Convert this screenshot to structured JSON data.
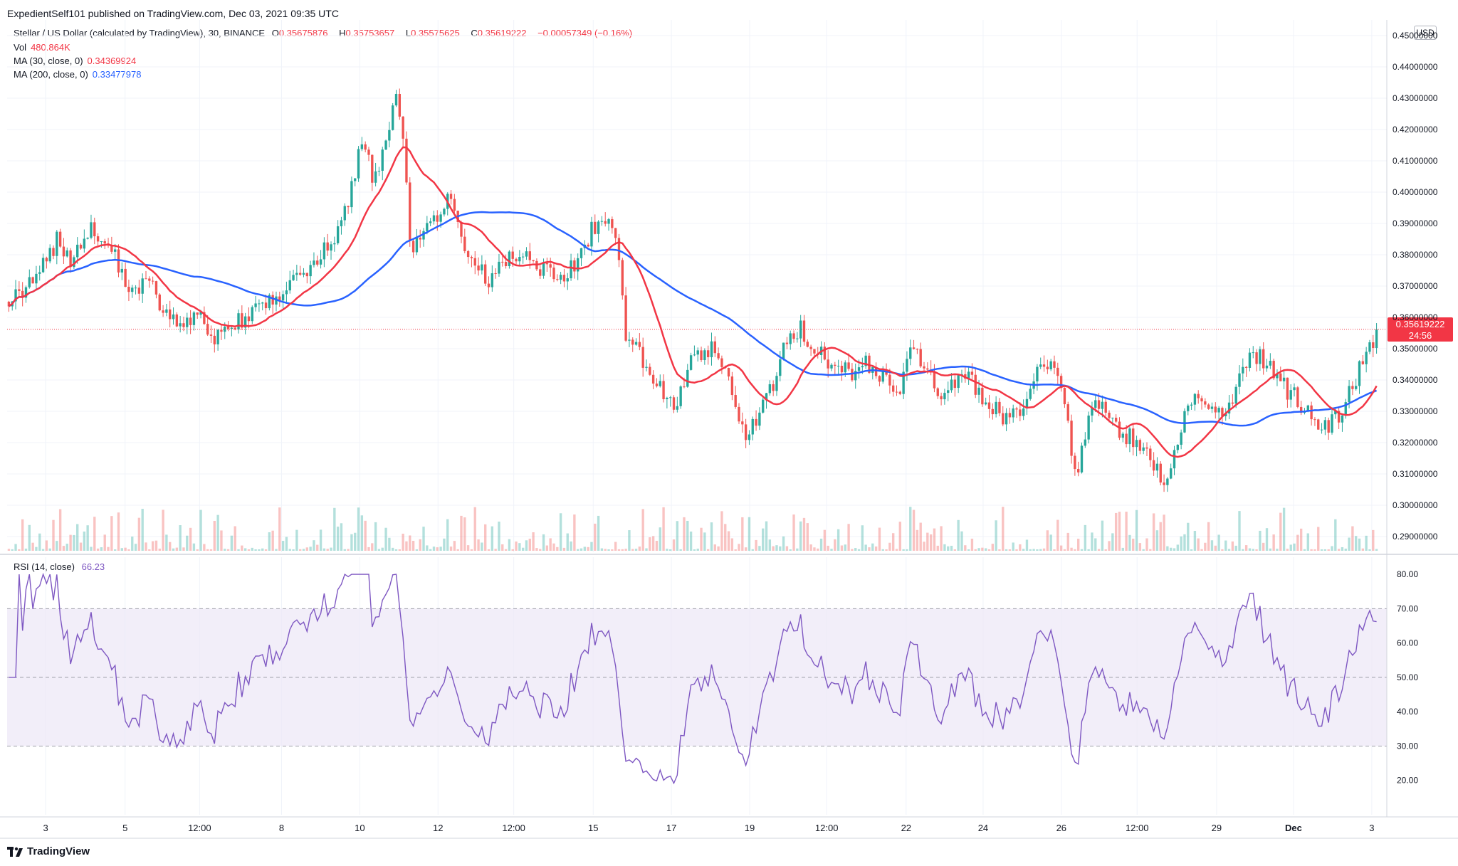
{
  "header": {
    "text": "ExpedientSelf101 published on TradingView.com, Dec 03, 2021 09:35 UTC"
  },
  "legend": {
    "symbol": "Stellar / US Dollar (calculated by TradingView), 30, BINANCE",
    "ohlc": {
      "o_label": "O",
      "o_value": "0.35675876",
      "h_label": "H",
      "h_value": "0.35753657",
      "l_label": "L",
      "l_value": "0.35575625",
      "c_label": "C",
      "c_value": "0.35619222",
      "change": "−0.00057349 (−0.16%)"
    },
    "vol_label": "Vol",
    "vol_value": "480.864K",
    "ma30_label": "MA (30, close, 0)",
    "ma30_value": "0.34369924",
    "ma200_label": "MA (200, close, 0)",
    "ma200_value": "0.33477978"
  },
  "currency": "USD",
  "price_badge": {
    "price": "0.35619222",
    "countdown": "24:56"
  },
  "rsi_legend": {
    "label": "RSI (14, close)",
    "value": "66.23"
  },
  "footer": {
    "brand": "TradingView"
  },
  "colors": {
    "up": "#26a69a",
    "down": "#ef5350",
    "ma30": "#f23645",
    "ma200": "#2962ff",
    "rsi": "#7e57c2",
    "rsi_band": "#ede7f6",
    "grid": "#f0f3fa"
  },
  "chart_data": [
    {
      "type": "candlestick",
      "title": "",
      "ylim": [
        0.285,
        0.455
      ],
      "y_ticks": [
        "0.45000000",
        "0.44000000",
        "0.43000000",
        "0.42000000",
        "0.41000000",
        "0.40000000",
        "0.39000000",
        "0.38000000",
        "0.37000000",
        "0.36000000",
        "0.35000000",
        "0.34000000",
        "0.33000000",
        "0.32000000",
        "0.31000000",
        "0.30000000",
        "0.29000000"
      ],
      "y_tick_values": [
        0.45,
        0.44,
        0.43,
        0.42,
        0.41,
        0.4,
        0.39,
        0.38,
        0.37,
        0.36,
        0.35,
        0.34,
        0.33,
        0.32,
        0.31,
        0.3,
        0.29
      ],
      "x_tick_labels": [
        "3",
        "5",
        "12:00",
        "8",
        "10",
        "12",
        "12:00",
        "15",
        "17",
        "19",
        "12:00",
        "22",
        "24",
        "26",
        "12:00",
        "29",
        "Dec",
        "3"
      ],
      "x_tick_positions": [
        0.031,
        0.095,
        0.155,
        0.221,
        0.284,
        0.347,
        0.408,
        0.472,
        0.535,
        0.598,
        0.66,
        0.724,
        0.786,
        0.849,
        0.91,
        0.974,
        1.036,
        1.099
      ],
      "last_price": 0.35619222,
      "path_points": [
        [
          0.0,
          0.365
        ],
        [
          0.02,
          0.372
        ],
        [
          0.035,
          0.385
        ],
        [
          0.045,
          0.378
        ],
        [
          0.06,
          0.388
        ],
        [
          0.075,
          0.381
        ],
        [
          0.085,
          0.368
        ],
        [
          0.1,
          0.372
        ],
        [
          0.112,
          0.362
        ],
        [
          0.125,
          0.358
        ],
        [
          0.138,
          0.36
        ],
        [
          0.145,
          0.352
        ],
        [
          0.16,
          0.357
        ],
        [
          0.175,
          0.361
        ],
        [
          0.19,
          0.366
        ],
        [
          0.205,
          0.372
        ],
        [
          0.22,
          0.378
        ],
        [
          0.232,
          0.383
        ],
        [
          0.245,
          0.398
        ],
        [
          0.255,
          0.418
        ],
        [
          0.262,
          0.405
        ],
        [
          0.27,
          0.412
        ],
        [
          0.278,
          0.432
        ],
        [
          0.283,
          0.42
        ],
        [
          0.29,
          0.38
        ],
        [
          0.3,
          0.388
        ],
        [
          0.31,
          0.392
        ],
        [
          0.318,
          0.398
        ],
        [
          0.325,
          0.385
        ],
        [
          0.335,
          0.378
        ],
        [
          0.345,
          0.372
        ],
        [
          0.36,
          0.378
        ],
        [
          0.372,
          0.38
        ],
        [
          0.385,
          0.375
        ],
        [
          0.398,
          0.372
        ],
        [
          0.41,
          0.378
        ],
        [
          0.42,
          0.388
        ],
        [
          0.43,
          0.391
        ],
        [
          0.438,
          0.383
        ],
        [
          0.445,
          0.352
        ],
        [
          0.455,
          0.348
        ],
        [
          0.468,
          0.338
        ],
        [
          0.48,
          0.333
        ],
        [
          0.492,
          0.347
        ],
        [
          0.505,
          0.35
        ],
        [
          0.515,
          0.345
        ],
        [
          0.525,
          0.33
        ],
        [
          0.532,
          0.322
        ],
        [
          0.54,
          0.33
        ],
        [
          0.55,
          0.338
        ],
        [
          0.56,
          0.353
        ],
        [
          0.57,
          0.357
        ],
        [
          0.58,
          0.35
        ],
        [
          0.592,
          0.345
        ],
        [
          0.605,
          0.342
        ],
        [
          0.618,
          0.345
        ],
        [
          0.63,
          0.34
        ],
        [
          0.64,
          0.334
        ],
        [
          0.65,
          0.352
        ],
        [
          0.66,
          0.345
        ],
        [
          0.67,
          0.335
        ],
        [
          0.68,
          0.339
        ],
        [
          0.692,
          0.34
        ],
        [
          0.705,
          0.333
        ],
        [
          0.718,
          0.328
        ],
        [
          0.73,
          0.332
        ],
        [
          0.742,
          0.345
        ],
        [
          0.752,
          0.343
        ],
        [
          0.76,
          0.336
        ],
        [
          0.768,
          0.308
        ],
        [
          0.776,
          0.325
        ],
        [
          0.785,
          0.333
        ],
        [
          0.795,
          0.325
        ],
        [
          0.805,
          0.322
        ],
        [
          0.815,
          0.32
        ],
        [
          0.825,
          0.312
        ],
        [
          0.833,
          0.306
        ],
        [
          0.84,
          0.318
        ],
        [
          0.85,
          0.332
        ],
        [
          0.86,
          0.334
        ],
        [
          0.87,
          0.328
        ],
        [
          0.88,
          0.332
        ],
        [
          0.89,
          0.345
        ],
        [
          0.9,
          0.348
        ],
        [
          0.91,
          0.344
        ],
        [
          0.92,
          0.337
        ],
        [
          0.93,
          0.333
        ],
        [
          0.94,
          0.326
        ],
        [
          0.95,
          0.326
        ],
        [
          0.96,
          0.33
        ],
        [
          0.968,
          0.338
        ],
        [
          0.975,
          0.347
        ],
        [
          0.98,
          0.35
        ],
        [
          0.985,
          0.356
        ]
      ],
      "series": [
        {
          "name": "MA (30, close, 0)",
          "smoothing": 30
        },
        {
          "name": "MA (200, close, 0)",
          "smoothing": 200
        }
      ]
    },
    {
      "type": "line",
      "title": "",
      "series_name": "RSI (14, close)",
      "ylim": [
        10,
        85
      ],
      "y_ticks": [
        "80.00",
        "70.00",
        "60.00",
        "50.00",
        "40.00",
        "30.00",
        "20.00"
      ],
      "y_tick_values": [
        80,
        70,
        60,
        50,
        40,
        30,
        20
      ],
      "band": [
        30,
        70
      ],
      "midline": 50,
      "last_value": 66.23
    }
  ]
}
